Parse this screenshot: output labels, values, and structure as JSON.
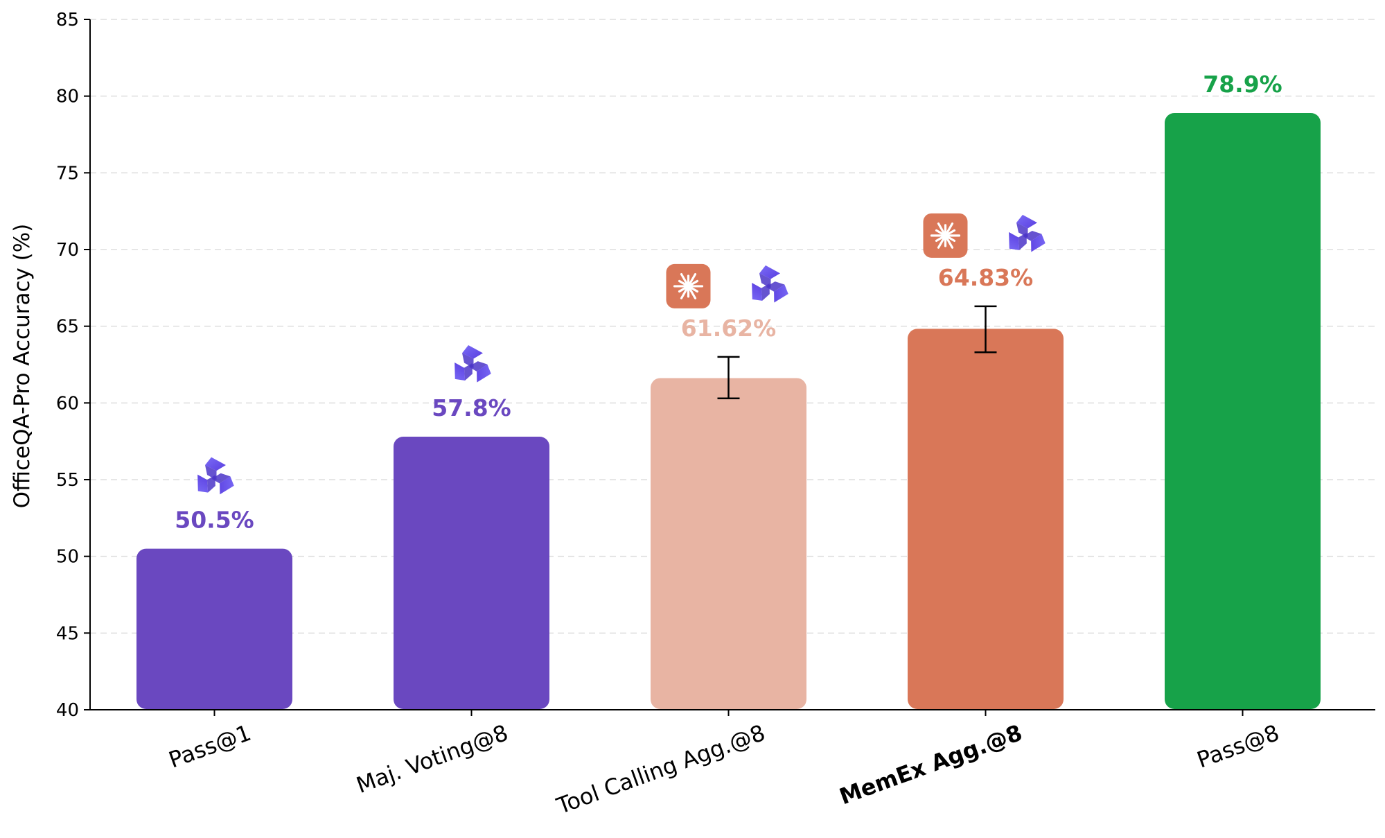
{
  "chart_data": {
    "type": "bar",
    "title": "",
    "xlabel": "",
    "ylabel": "OfficeQA-Pro Accuracy (%)",
    "ylim": [
      40,
      85
    ],
    "yticks": [
      40,
      45,
      50,
      55,
      60,
      65,
      70,
      75,
      80,
      85
    ],
    "grid": "horizontal dashed",
    "categories": [
      "Pass@1",
      "Maj. Voting@8",
      "Tool Calling Agg.@8",
      "MemEx Agg.@8",
      "Pass@8"
    ],
    "category_bold": [
      false,
      false,
      false,
      true,
      false
    ],
    "values": [
      50.5,
      57.8,
      61.62,
      64.83,
      78.9
    ],
    "value_labels": [
      "50.5%",
      "57.8%",
      "61.62%",
      "64.83%",
      "78.9%"
    ],
    "error_bars": [
      null,
      null,
      [
        60.3,
        63.0
      ],
      [
        63.3,
        66.3
      ],
      null
    ],
    "colors": [
      "#6a48c0",
      "#6a48c0",
      "#e8b4a3",
      "#d97758",
      "#17a249"
    ],
    "label_colors": [
      "#6a48c0",
      "#6a48c0",
      "#e8b4a3",
      "#d97758",
      "#17a249"
    ],
    "icons": [
      [
        "qwen-icon"
      ],
      [
        "qwen-icon"
      ],
      [
        "claude-icon",
        "qwen-icon"
      ],
      [
        "claude-icon",
        "qwen-icon"
      ],
      []
    ]
  }
}
